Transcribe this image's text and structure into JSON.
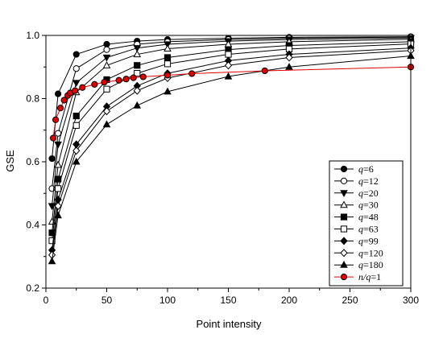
{
  "chart_data": {
    "type": "line",
    "xlabel": "Point intensity",
    "ylabel": "GSE",
    "xlim": [
      0,
      300
    ],
    "ylim": [
      0.2,
      1.0
    ],
    "xticks": [
      "0",
      "50",
      "100",
      "150",
      "200",
      "250",
      "300"
    ],
    "yticks": [
      "0.2",
      "0.4",
      "0.6",
      "0.8",
      "1.0"
    ],
    "legend_position": "bottom-right",
    "grid": false,
    "series": [
      {
        "name": "q=6",
        "label_var": "q",
        "label_rest": "=6",
        "marker": "circle",
        "fill": "black",
        "color": "#000000",
        "x": [
          5,
          10,
          25,
          50,
          75,
          100,
          150,
          200,
          300
        ],
        "y": [
          0.61,
          0.815,
          0.94,
          0.972,
          0.982,
          0.987,
          0.991,
          0.994,
          0.996
        ]
      },
      {
        "name": "q=12",
        "label_var": "q",
        "label_rest": "=12",
        "marker": "circle",
        "fill": "white",
        "color": "#000000",
        "x": [
          5,
          10,
          25,
          50,
          75,
          100,
          150,
          200,
          300
        ],
        "y": [
          0.515,
          0.69,
          0.895,
          0.955,
          0.972,
          0.98,
          0.987,
          0.991,
          0.995
        ]
      },
      {
        "name": "q=20",
        "label_var": "q",
        "label_rest": "=20",
        "marker": "triangle-down",
        "fill": "black",
        "color": "#000000",
        "x": [
          5,
          10,
          25,
          50,
          75,
          100,
          150,
          200,
          300
        ],
        "y": [
          0.46,
          0.655,
          0.85,
          0.93,
          0.96,
          0.972,
          0.982,
          0.987,
          0.992
        ]
      },
      {
        "name": "q=30",
        "label_var": "q",
        "label_rest": "=30",
        "marker": "triangle-up",
        "fill": "white",
        "color": "#000000",
        "x": [
          5,
          10,
          25,
          50,
          75,
          100,
          150,
          200,
          300
        ],
        "y": [
          0.41,
          0.59,
          0.82,
          0.905,
          0.94,
          0.958,
          0.972,
          0.98,
          0.988
        ]
      },
      {
        "name": "q=48",
        "label_var": "q",
        "label_rest": "=48",
        "marker": "square",
        "fill": "black",
        "color": "#000000",
        "x": [
          5,
          10,
          25,
          50,
          75,
          100,
          150,
          200,
          300
        ],
        "y": [
          0.375,
          0.545,
          0.745,
          0.86,
          0.905,
          0.93,
          0.955,
          0.968,
          0.98
        ]
      },
      {
        "name": "q=63",
        "label_var": "q",
        "label_rest": "=63",
        "marker": "square",
        "fill": "white",
        "color": "#000000",
        "x": [
          5,
          10,
          25,
          50,
          75,
          100,
          150,
          200,
          300
        ],
        "y": [
          0.35,
          0.515,
          0.715,
          0.83,
          0.88,
          0.91,
          0.94,
          0.957,
          0.973
        ]
      },
      {
        "name": "q=99",
        "label_var": "q",
        "label_rest": "=99",
        "marker": "diamond",
        "fill": "black",
        "color": "#000000",
        "x": [
          5,
          10,
          25,
          50,
          75,
          100,
          150,
          200,
          300
        ],
        "y": [
          0.32,
          0.48,
          0.655,
          0.775,
          0.84,
          0.88,
          0.92,
          0.94,
          0.96
        ]
      },
      {
        "name": "q=120",
        "label_var": "q",
        "label_rest": "=120",
        "marker": "diamond",
        "fill": "white",
        "color": "#000000",
        "x": [
          5,
          10,
          25,
          50,
          75,
          100,
          150,
          200,
          300
        ],
        "y": [
          0.305,
          0.46,
          0.635,
          0.76,
          0.825,
          0.865,
          0.905,
          0.93,
          0.952
        ]
      },
      {
        "name": "q=180",
        "label_var": "q",
        "label_rest": "=180",
        "marker": "triangle-up",
        "fill": "black",
        "color": "#000000",
        "x": [
          5,
          10,
          25,
          50,
          75,
          100,
          150,
          200,
          300
        ],
        "y": [
          0.285,
          0.43,
          0.6,
          0.718,
          0.778,
          0.822,
          0.87,
          0.9,
          0.935
        ]
      },
      {
        "name": "n/q=1",
        "label_var": "n/q",
        "label_rest": "=1",
        "marker": "circle",
        "fill": "#e00000",
        "color": "#e00000",
        "x": [
          6,
          8,
          12,
          15,
          18,
          20,
          24,
          30,
          40,
          48,
          60,
          66,
          72,
          80,
          100,
          120,
          180,
          300
        ],
        "y": [
          0.675,
          0.733,
          0.77,
          0.795,
          0.81,
          0.818,
          0.825,
          0.835,
          0.845,
          0.852,
          0.858,
          0.862,
          0.866,
          0.869,
          0.874,
          0.879,
          0.888,
          0.9
        ]
      }
    ]
  }
}
